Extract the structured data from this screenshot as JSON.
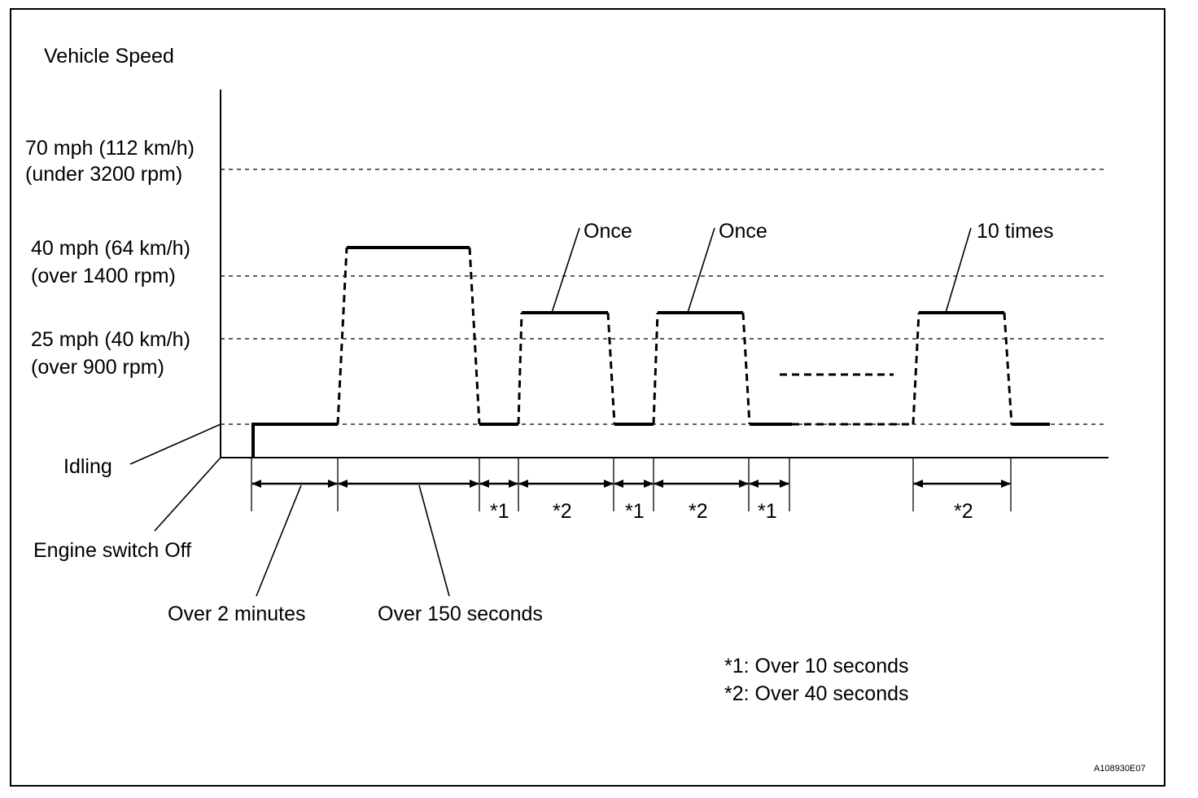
{
  "y_axis_title": "Vehicle Speed",
  "levels": {
    "speed_70": [
      "70 mph (112 km/h)",
      "(under 3200 rpm)"
    ],
    "speed_40": [
      "40 mph (64 km/h)",
      "(over 1400 rpm)"
    ],
    "speed_25": [
      "25 mph (40 km/h)",
      "(over 900 rpm)"
    ],
    "idling": "Idling",
    "engine_off": "Engine switch Off"
  },
  "callouts": {
    "once_1": "Once",
    "once_2": "Once",
    "ten_times": "10 times"
  },
  "interval_labels": {
    "star1_a": "*1",
    "star2_a": "*2",
    "star1_b": "*1",
    "star2_b": "*2",
    "star1_c": "*1",
    "star2_c": "*2"
  },
  "duration_labels": {
    "over_2_minutes": "Over 2 minutes",
    "over_150_seconds": "Over 150 seconds"
  },
  "footnotes": {
    "note1": "*1: Over 10 seconds",
    "note2": "*2: Over 40 seconds"
  },
  "figure_code": "A108930E07"
}
